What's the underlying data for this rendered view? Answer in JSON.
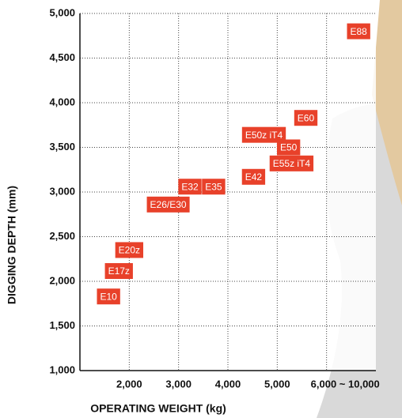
{
  "chart_data": {
    "type": "scatter",
    "x_label": "OPERATING WEIGHT (kg)",
    "y_label": "DIGGING DEPTH (mm)",
    "labels": [
      "E10",
      "E17z",
      "E20z",
      "E26/E30",
      "E32",
      "E35",
      "E42",
      "E50z iT4",
      "E50",
      "E55z iT4",
      "E60",
      "E88"
    ],
    "x": [
      1580,
      1790,
      2000,
      2790,
      3230,
      3710,
      4520,
      4730,
      5230,
      5290,
      5580,
      6650
    ],
    "values": [
      1830,
      2115,
      2350,
      2860,
      3060,
      3060,
      3170,
      3640,
      3500,
      3320,
      3830,
      4800
    ],
    "color": "#e8412a",
    "xlim": [
      1000,
      7000
    ],
    "ylim": [
      1000,
      5000
    ],
    "xticks": [
      {
        "value": 2000,
        "label": "2,000"
      },
      {
        "value": 3000,
        "label": "3,000"
      },
      {
        "value": 4000,
        "label": "4,000"
      },
      {
        "value": 5000,
        "label": "5,000"
      },
      {
        "value": 6000,
        "label": "6,000 ~ 10,000"
      }
    ],
    "yticks": [
      {
        "value": 1000,
        "label": "1,000"
      },
      {
        "value": 1500,
        "label": "1,500"
      },
      {
        "value": 2000,
        "label": "2,000"
      },
      {
        "value": 2500,
        "label": "2,500"
      },
      {
        "value": 3000,
        "label": "3,000"
      },
      {
        "value": 3500,
        "label": "3,500"
      },
      {
        "value": 4000,
        "label": "4,000"
      },
      {
        "value": 4500,
        "label": "4,500"
      },
      {
        "value": 5000,
        "label": "5,000"
      }
    ],
    "grid": true
  }
}
